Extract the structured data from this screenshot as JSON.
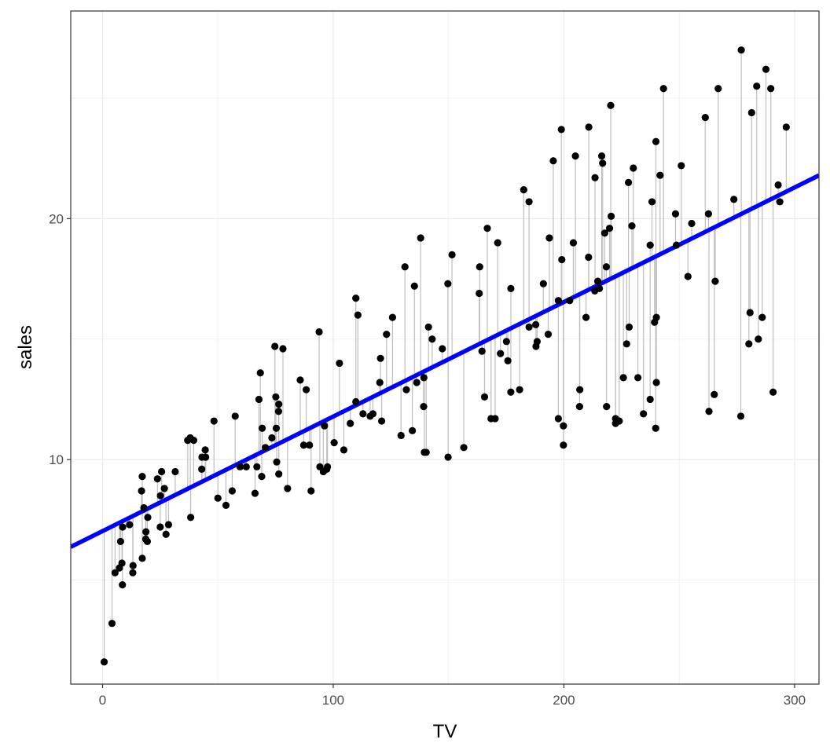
{
  "chart_data": {
    "type": "scatter",
    "title": "",
    "xlabel": "TV",
    "ylabel": "sales",
    "xlim": [
      -13.8,
      310.6
    ],
    "ylim": [
      0.68,
      28.62
    ],
    "x_ticks": [
      0,
      100,
      200,
      300
    ],
    "y_ticks": [
      10,
      20
    ],
    "x_minor": [
      50,
      150,
      250
    ],
    "y_minor": [
      5,
      15,
      25
    ],
    "grid": true,
    "legend": "none",
    "theme": "bw",
    "regression_line": {
      "intercept": 7.0326,
      "slope": 0.047537,
      "color": "#0000FF"
    },
    "residual_color": "#BEBEBE",
    "point_color": "#000000",
    "series": [
      {
        "points": [
          [
            230.1,
            22.1
          ],
          [
            44.5,
            10.4
          ],
          [
            17.2,
            9.3
          ],
          [
            151.5,
            18.5
          ],
          [
            180.8,
            12.9
          ],
          [
            8.7,
            7.2
          ],
          [
            57.5,
            11.8
          ],
          [
            120.2,
            13.2
          ],
          [
            8.6,
            4.8
          ],
          [
            199.8,
            10.6
          ],
          [
            66.1,
            8.6
          ],
          [
            214.7,
            17.4
          ],
          [
            23.8,
            9.2
          ],
          [
            97.5,
            9.7
          ],
          [
            204.1,
            19.0
          ],
          [
            195.4,
            22.4
          ],
          [
            67.8,
            12.5
          ],
          [
            281.4,
            24.4
          ],
          [
            69.2,
            11.3
          ],
          [
            147.3,
            14.6
          ],
          [
            218.4,
            18.0
          ],
          [
            237.4,
            12.5
          ],
          [
            13.2,
            5.6
          ],
          [
            228.3,
            15.5
          ],
          [
            62.3,
            9.7
          ],
          [
            262.9,
            12.0
          ],
          [
            142.9,
            15.0
          ],
          [
            240.1,
            15.9
          ],
          [
            248.8,
            18.9
          ],
          [
            70.6,
            10.5
          ],
          [
            292.9,
            21.4
          ],
          [
            112.9,
            11.9
          ],
          [
            97.2,
            9.6
          ],
          [
            265.6,
            17.4
          ],
          [
            95.7,
            9.5
          ],
          [
            290.7,
            12.8
          ],
          [
            266.9,
            25.4
          ],
          [
            74.7,
            14.7
          ],
          [
            43.1,
            10.1
          ],
          [
            228.0,
            21.5
          ],
          [
            202.5,
            16.6
          ],
          [
            177.0,
            17.1
          ],
          [
            293.6,
            20.7
          ],
          [
            206.9,
            12.9
          ],
          [
            25.1,
            8.5
          ],
          [
            175.1,
            14.9
          ],
          [
            89.7,
            10.6
          ],
          [
            239.9,
            23.2
          ],
          [
            227.2,
            14.8
          ],
          [
            66.9,
            9.7
          ],
          [
            199.8,
            11.4
          ],
          [
            100.4,
            10.7
          ],
          [
            216.4,
            22.6
          ],
          [
            182.6,
            21.2
          ],
          [
            262.7,
            20.2
          ],
          [
            198.9,
            23.7
          ],
          [
            7.3,
            5.5
          ],
          [
            136.2,
            13.2
          ],
          [
            210.8,
            23.8
          ],
          [
            210.7,
            18.4
          ],
          [
            53.5,
            8.1
          ],
          [
            261.3,
            24.2
          ],
          [
            239.3,
            15.7
          ],
          [
            102.7,
            14.0
          ],
          [
            131.1,
            18.0
          ],
          [
            69.0,
            9.3
          ],
          [
            31.5,
            9.5
          ],
          [
            139.3,
            13.4
          ],
          [
            237.4,
            18.9
          ],
          [
            216.8,
            22.3
          ],
          [
            199.1,
            18.3
          ],
          [
            109.8,
            12.4
          ],
          [
            26.8,
            8.8
          ],
          [
            129.4,
            11.0
          ],
          [
            213.4,
            17.0
          ],
          [
            16.9,
            8.7
          ],
          [
            27.5,
            6.9
          ],
          [
            120.5,
            14.2
          ],
          [
            5.4,
            5.3
          ],
          [
            116.0,
            11.8
          ],
          [
            76.4,
            12.3
          ],
          [
            239.8,
            11.3
          ],
          [
            75.3,
            11.3
          ],
          [
            68.4,
            13.6
          ],
          [
            213.5,
            21.7
          ],
          [
            193.2,
            15.2
          ],
          [
            76.3,
            12.0
          ],
          [
            110.7,
            16.0
          ],
          [
            88.3,
            12.9
          ],
          [
            109.8,
            16.7
          ],
          [
            134.3,
            11.2
          ],
          [
            28.6,
            7.3
          ],
          [
            217.7,
            19.4
          ],
          [
            250.9,
            22.2
          ],
          [
            107.4,
            11.5
          ],
          [
            163.3,
            16.9
          ],
          [
            197.6,
            11.7
          ],
          [
            184.9,
            15.5
          ],
          [
            289.7,
            25.4
          ],
          [
            135.2,
            17.2
          ],
          [
            222.4,
            11.7
          ],
          [
            296.4,
            23.8
          ],
          [
            280.2,
            14.8
          ],
          [
            187.9,
            14.7
          ],
          [
            238.2,
            20.7
          ],
          [
            137.9,
            19.2
          ],
          [
            25.0,
            7.2
          ],
          [
            90.4,
            8.7
          ],
          [
            13.1,
            5.3
          ],
          [
            255.4,
            19.8
          ],
          [
            225.8,
            13.4
          ],
          [
            241.7,
            21.8
          ],
          [
            175.7,
            14.1
          ],
          [
            209.6,
            15.9
          ],
          [
            78.2,
            14.6
          ],
          [
            75.1,
            12.6
          ],
          [
            139.2,
            12.2
          ],
          [
            76.4,
            9.4
          ],
          [
            125.7,
            15.9
          ],
          [
            19.4,
            6.6
          ],
          [
            141.3,
            15.5
          ],
          [
            18.8,
            7.0
          ],
          [
            224.0,
            11.6
          ],
          [
            123.1,
            15.2
          ],
          [
            229.5,
            19.7
          ],
          [
            87.2,
            10.6
          ],
          [
            7.8,
            6.6
          ],
          [
            80.2,
            8.8
          ],
          [
            220.3,
            24.7
          ],
          [
            59.6,
            9.7
          ],
          [
            0.7,
            1.6
          ],
          [
            265.2,
            12.7
          ],
          [
            8.4,
            5.7
          ],
          [
            219.8,
            19.6
          ],
          [
            36.9,
            10.8
          ],
          [
            48.3,
            11.6
          ],
          [
            25.6,
            9.5
          ],
          [
            273.7,
            20.8
          ],
          [
            43.0,
            9.6
          ],
          [
            184.9,
            20.7
          ],
          [
            73.4,
            10.9
          ],
          [
            193.7,
            19.2
          ],
          [
            220.5,
            20.1
          ],
          [
            104.6,
            10.4
          ],
          [
            96.2,
            11.4
          ],
          [
            140.3,
            10.3
          ],
          [
            240.1,
            13.2
          ],
          [
            243.2,
            25.4
          ],
          [
            38.0,
            10.9
          ],
          [
            44.7,
            10.1
          ],
          [
            280.7,
            16.1
          ],
          [
            121.0,
            11.6
          ],
          [
            197.6,
            16.6
          ],
          [
            171.3,
            19.0
          ],
          [
            187.8,
            15.6
          ],
          [
            4.1,
            3.2
          ],
          [
            93.9,
            15.3
          ],
          [
            149.8,
            10.1
          ],
          [
            11.7,
            7.3
          ],
          [
            131.7,
            12.9
          ],
          [
            172.5,
            14.4
          ],
          [
            85.7,
            13.3
          ],
          [
            188.4,
            14.9
          ],
          [
            163.5,
            18.0
          ],
          [
            117.2,
            11.9
          ],
          [
            234.5,
            11.9
          ],
          [
            17.9,
            8.0
          ],
          [
            206.8,
            12.2
          ],
          [
            215.4,
            17.1
          ],
          [
            284.3,
            15.0
          ],
          [
            50.0,
            8.4
          ],
          [
            164.5,
            14.5
          ],
          [
            19.6,
            7.6
          ],
          [
            168.4,
            11.7
          ],
          [
            222.4,
            11.5
          ],
          [
            276.9,
            27.0
          ],
          [
            248.4,
            20.2
          ],
          [
            170.2,
            11.7
          ],
          [
            276.7,
            11.8
          ],
          [
            165.6,
            12.6
          ],
          [
            156.6,
            10.5
          ],
          [
            218.5,
            12.2
          ],
          [
            56.2,
            8.7
          ],
          [
            287.6,
            26.2
          ],
          [
            253.8,
            17.6
          ],
          [
            205.0,
            22.6
          ],
          [
            139.5,
            10.3
          ],
          [
            191.1,
            17.3
          ],
          [
            286.0,
            15.9
          ],
          [
            18.7,
            6.7
          ],
          [
            39.5,
            10.8
          ],
          [
            75.5,
            9.9
          ],
          [
            17.2,
            5.9
          ],
          [
            166.8,
            19.6
          ],
          [
            149.7,
            17.3
          ],
          [
            38.2,
            7.6
          ],
          [
            94.2,
            9.7
          ],
          [
            177.0,
            12.8
          ],
          [
            283.6,
            25.5
          ],
          [
            232.1,
            13.4
          ]
        ]
      }
    ]
  }
}
